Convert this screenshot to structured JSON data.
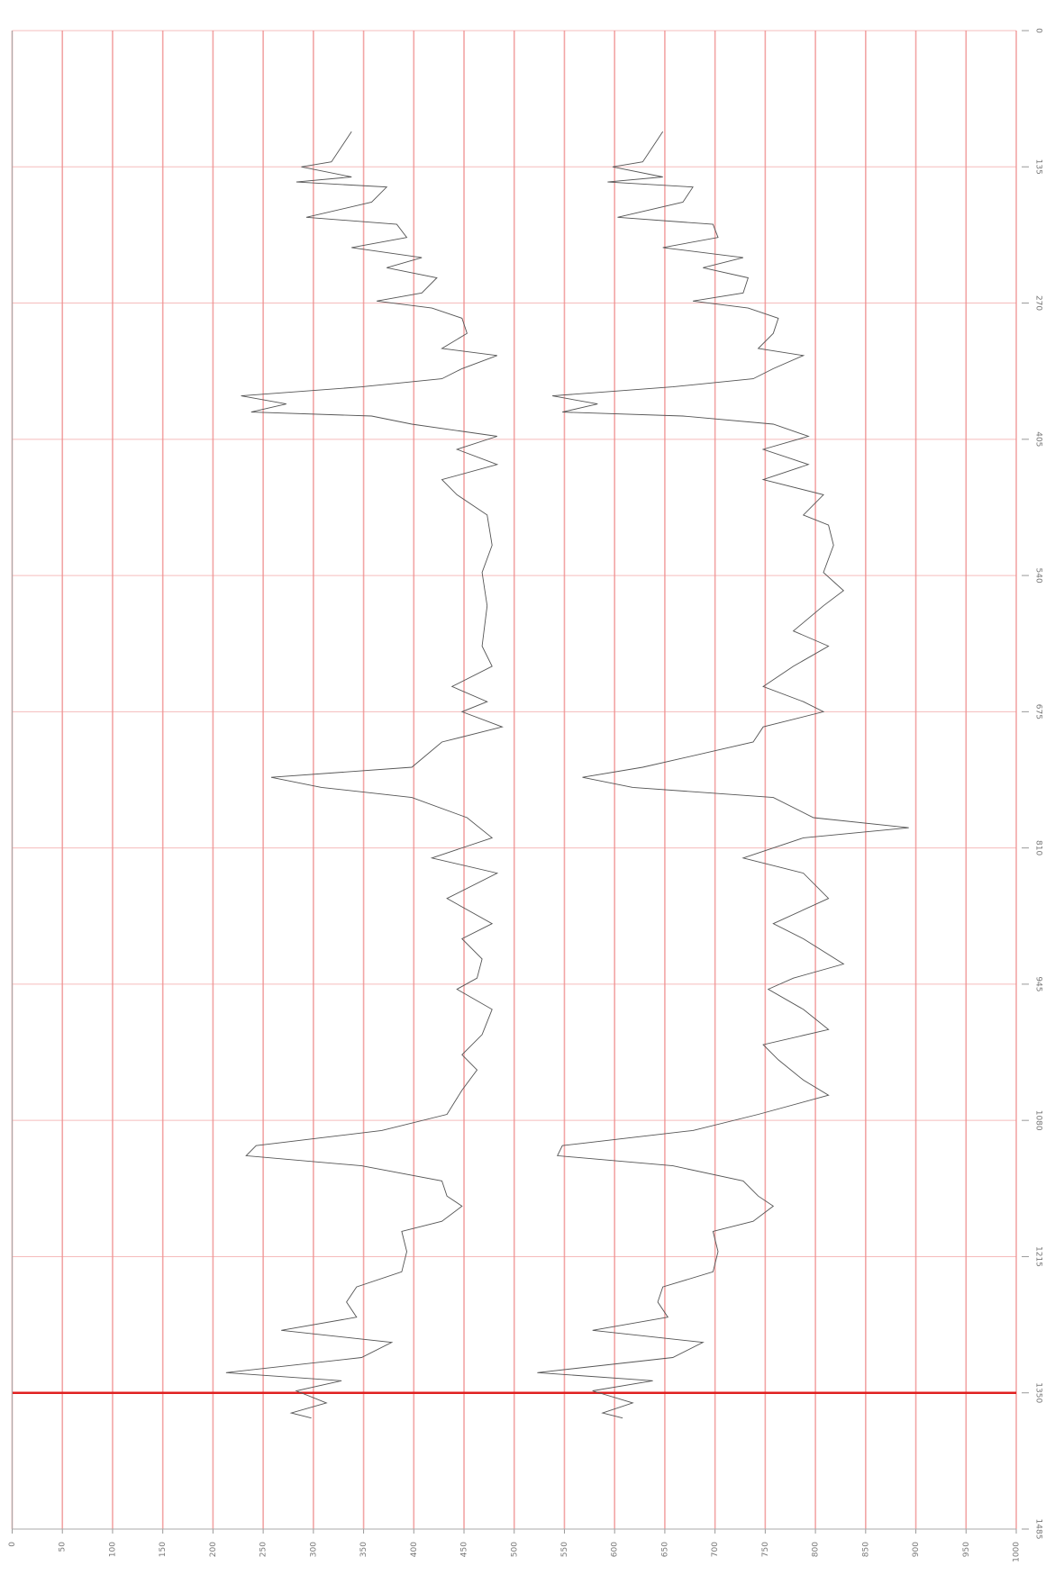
{
  "chart_data": {
    "type": "line",
    "y_inverted": true,
    "grid": true,
    "highlight_y": 1350,
    "grid_color": "#ef8f8f",
    "highlight_color": "#e02020",
    "xlim": [
      0,
      1000
    ],
    "xticks": [
      0,
      50,
      100,
      150,
      200,
      250,
      300,
      350,
      400,
      450,
      500,
      550,
      600,
      650,
      700,
      750,
      800,
      850,
      900,
      950,
      1000
    ],
    "ylim": [
      0,
      1485
    ],
    "yticks": [
      0,
      135,
      270,
      405,
      540,
      675,
      810,
      945,
      1080,
      1215,
      1350,
      1485
    ],
    "series": [
      {
        "color": "#555555",
        "y": [
          100,
          115,
          130,
          135,
          145,
          150,
          155,
          170,
          185,
          192,
          205,
          215,
          225,
          235,
          245,
          260,
          268,
          275,
          285,
          300,
          315,
          322,
          335,
          345,
          353,
          362,
          370,
          378,
          382,
          390,
          402,
          415,
          430,
          445,
          460,
          480,
          510,
          537,
          570,
          610,
          630,
          650,
          665,
          675,
          690,
          705,
          730,
          740,
          750,
          760,
          780,
          800,
          820,
          835,
          860,
          885,
          900,
          920,
          939,
          950,
          970,
          995,
          1015,
          1030,
          1050,
          1074,
          1090,
          1105,
          1115,
          1125,
          1140,
          1155,
          1165,
          1180,
          1190,
          1210,
          1230,
          1245,
          1260,
          1275,
          1288,
          1300,
          1315,
          1330,
          1338,
          1348,
          1360,
          1370,
          1375
        ],
        "values": [
          338,
          328,
          318,
          288,
          338,
          283,
          373,
          358,
          293,
          383,
          393,
          338,
          408,
          373,
          423,
          408,
          363,
          418,
          448,
          453,
          428,
          483,
          448,
          428,
          348,
          228,
          273,
          238,
          358,
          398,
          483,
          443,
          483,
          428,
          443,
          473,
          478,
          468,
          473,
          468,
          478,
          438,
          473,
          448,
          488,
          428,
          398,
          258,
          308,
          398,
          453,
          478,
          418,
          483,
          433,
          478,
          448,
          468,
          463,
          443,
          478,
          468,
          448,
          463,
          448,
          433,
          368,
          243,
          233,
          348,
          428,
          433,
          448,
          428,
          388,
          393,
          388,
          343,
          333,
          343,
          268,
          378,
          348,
          213,
          328,
          283,
          313,
          278,
          298
        ]
      },
      {
        "color": "#555555",
        "y": [
          100,
          115,
          130,
          135,
          145,
          150,
          155,
          170,
          185,
          192,
          205,
          215,
          225,
          235,
          245,
          260,
          268,
          275,
          285,
          300,
          315,
          322,
          335,
          345,
          353,
          362,
          370,
          378,
          382,
          390,
          402,
          415,
          430,
          445,
          460,
          480,
          490,
          510,
          537,
          555,
          570,
          595,
          610,
          630,
          650,
          665,
          675,
          690,
          705,
          730,
          740,
          750,
          760,
          780,
          790,
          800,
          820,
          835,
          860,
          885,
          900,
          925,
          939,
          950,
          970,
          990,
          1005,
          1020,
          1040,
          1055,
          1074,
          1090,
          1105,
          1115,
          1125,
          1140,
          1155,
          1165,
          1180,
          1190,
          1210,
          1230,
          1245,
          1260,
          1275,
          1288,
          1300,
          1315,
          1330,
          1338,
          1348,
          1360,
          1370,
          1375
        ],
        "values": [
          648,
          638,
          628,
          598,
          648,
          593,
          678,
          668,
          603,
          698,
          703,
          648,
          728,
          688,
          733,
          728,
          678,
          733,
          763,
          758,
          743,
          788,
          758,
          738,
          658,
          538,
          583,
          548,
          668,
          758,
          793,
          748,
          793,
          748,
          808,
          788,
          813,
          818,
          808,
          828,
          808,
          778,
          813,
          778,
          748,
          788,
          808,
          748,
          738,
          628,
          568,
          618,
          758,
          798,
          893,
          788,
          728,
          788,
          813,
          758,
          788,
          828,
          778,
          753,
          788,
          813,
          748,
          763,
          788,
          813,
          743,
          678,
          548,
          543,
          658,
          728,
          743,
          758,
          738,
          698,
          703,
          698,
          648,
          643,
          653,
          578,
          688,
          658,
          523,
          638,
          578,
          618,
          588,
          608
        ]
      }
    ]
  }
}
